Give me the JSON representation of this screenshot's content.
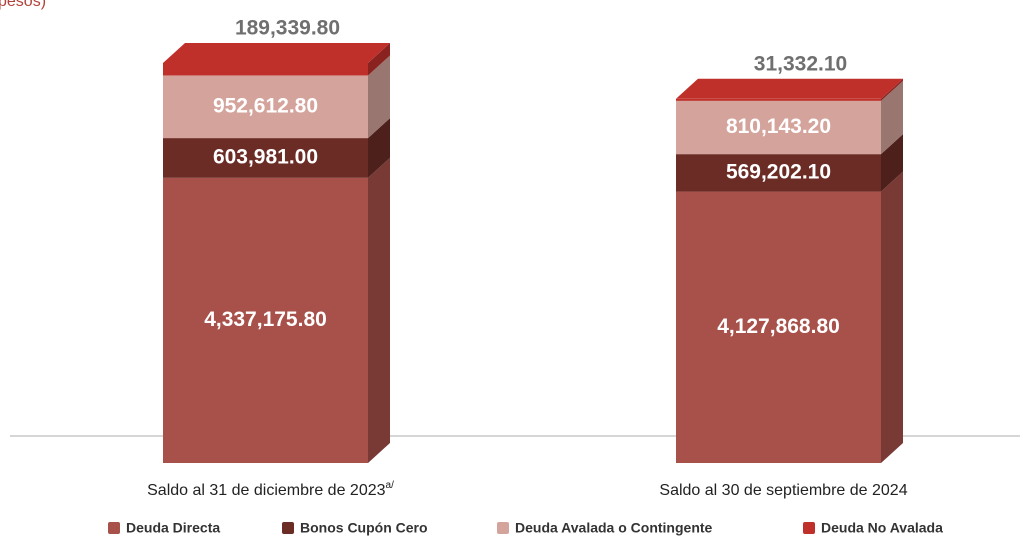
{
  "chart_data": {
    "type": "stacked_bar_3d",
    "subtitle": "pesos)",
    "categories": [
      "Saldo al 31 de diciembre de 2023",
      "Saldo al 30 de septiembre de 2024"
    ],
    "category_superscripts": [
      "a/",
      null
    ],
    "series": [
      {
        "name": "Deuda Directa",
        "color": "#a8514a",
        "values": [
          4337175.8,
          4127868.8
        ],
        "value_labels": [
          "4,337,175.80",
          "4,127,868.80"
        ]
      },
      {
        "name": "Bonos Cupón Cero",
        "color": "#6b2c26",
        "values": [
          603981.0,
          569202.1
        ],
        "value_labels": [
          "603,981.00",
          "569,202.10"
        ]
      },
      {
        "name": "Deuda Avalada o Contingente",
        "color": "#d4a49c",
        "values": [
          952612.8,
          810143.2
        ],
        "value_labels": [
          "952,612.80",
          "810,143.20"
        ]
      },
      {
        "name": "Deuda No Avalada",
        "color": "#c0302b",
        "values": [
          189339.8,
          31332.1
        ],
        "value_labels": [
          "189,339.80",
          "31,332.10"
        ]
      }
    ]
  }
}
